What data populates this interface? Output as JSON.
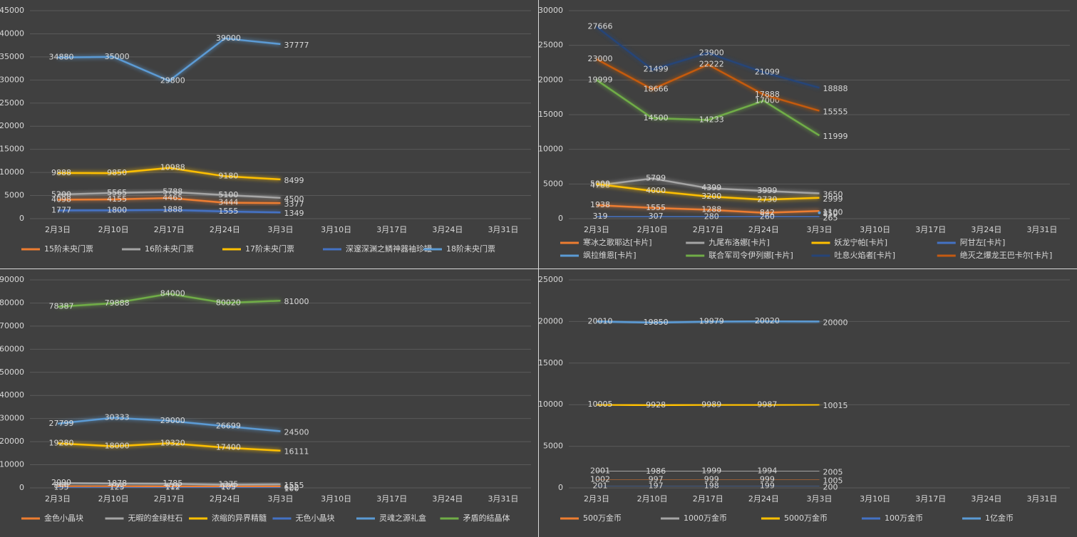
{
  "chart_data": [
    {
      "type": "line",
      "categories": [
        "2月3日",
        "2月10日",
        "2月17日",
        "2月24日",
        "3月3日",
        "3月10日",
        "3月17日",
        "3月24日",
        "3月31日"
      ],
      "ylim": [
        0,
        45000
      ],
      "yticks": [
        0,
        5000,
        10000,
        15000,
        20000,
        25000,
        30000,
        35000,
        40000,
        45000
      ],
      "grid": true,
      "legend": "bottom",
      "series": [
        {
          "name": "15阶未央门票",
          "color": "#ed7d31",
          "values": [
            4098,
            4155,
            4465,
            3444,
            3377,
            null,
            null,
            null,
            null
          ]
        },
        {
          "name": "16阶未央门票",
          "color": "#a5a5a5",
          "values": [
            5200,
            5565,
            5788,
            5100,
            4500,
            null,
            null,
            null,
            null
          ]
        },
        {
          "name": "17阶未央门票",
          "color": "#ffc000",
          "values": [
            9888,
            9850,
            10988,
            9180,
            8499,
            null,
            null,
            null,
            null
          ]
        },
        {
          "name": "深邃深渊之鳞神器袖珍罐",
          "color": "#4472c4",
          "values": [
            1777,
            1800,
            1888,
            1555,
            1349,
            null,
            null,
            null,
            null
          ]
        },
        {
          "name": "18阶未央门票",
          "color": "#5b9bd5",
          "values": [
            34880,
            35000,
            29800,
            39000,
            37777,
            null,
            null,
            null,
            null
          ]
        }
      ]
    },
    {
      "type": "line",
      "categories": [
        "2月3日",
        "2月10日",
        "2月17日",
        "2月24日",
        "3月3日",
        "3月10日",
        "3月17日",
        "3月24日",
        "3月31日"
      ],
      "ylim": [
        0,
        30000
      ],
      "yticks": [
        0,
        5000,
        10000,
        15000,
        20000,
        25000,
        30000
      ],
      "grid": true,
      "legend": "bottom",
      "series": [
        {
          "name": "寒冰之歌耶达[卡片]",
          "color": "#ed7d31",
          "values": [
            1938,
            1555,
            1288,
            842,
            1100,
            null,
            null,
            null,
            null
          ]
        },
        {
          "name": "九尾布洛娜[卡片]",
          "color": "#a5a5a5",
          "values": [
            4788,
            5799,
            4399,
            3999,
            3650,
            null,
            null,
            null,
            null
          ]
        },
        {
          "name": "妖龙宁帕[卡片]",
          "color": "#ffc000",
          "values": [
            5000,
            4000,
            3200,
            2730,
            2999,
            null,
            null,
            null,
            null
          ]
        },
        {
          "name": "阿甘左[卡片]",
          "color": "#4472c4",
          "values": [
            319,
            307,
            280,
            260,
            265,
            null,
            null,
            null,
            null
          ]
        },
        {
          "name": "飒拉维恩[卡片]",
          "color": "#5b9bd5",
          "values": [
            null,
            null,
            null,
            null,
            850,
            null,
            null,
            null,
            null
          ]
        },
        {
          "name": "联合军司令伊列娜[卡片]",
          "color": "#70ad47",
          "values": [
            19999,
            14500,
            14233,
            17000,
            11999,
            null,
            null,
            null,
            null
          ]
        },
        {
          "name": "吐息火焰者[卡片]",
          "color": "#264478",
          "values": [
            27666,
            21499,
            23900,
            21099,
            18888,
            null,
            null,
            null,
            null
          ]
        },
        {
          "name": "绝灭之爆龙王巴卡尔[卡片]",
          "color": "#c55a11",
          "values": [
            23000,
            18666,
            22222,
            17888,
            15555,
            null,
            null,
            null,
            null
          ]
        }
      ]
    },
    {
      "type": "line",
      "categories": [
        "2月3日",
        "2月10日",
        "2月17日",
        "2月24日",
        "3月3日",
        "3月10日",
        "3月17日",
        "3月24日",
        "3月31日"
      ],
      "ylim": [
        0,
        90000
      ],
      "yticks": [
        0,
        10000,
        20000,
        30000,
        40000,
        50000,
        60000,
        70000,
        80000,
        90000
      ],
      "grid": true,
      "legend": "bottom",
      "series": [
        {
          "name": "金色小晶块",
          "color": "#ed7d31",
          "values": [
            866,
            792,
            628,
            579,
            622,
            null,
            null,
            null,
            null
          ]
        },
        {
          "name": "无暇的金绿柱石",
          "color": "#a5a5a5",
          "values": [
            2090,
            1878,
            1785,
            1375,
            1555,
            null,
            null,
            null,
            null
          ]
        },
        {
          "name": "浓缩的异界精髓",
          "color": "#ffc000",
          "values": [
            19280,
            18000,
            19320,
            17400,
            16111,
            null,
            null,
            null,
            null
          ]
        },
        {
          "name": "无色小晶块",
          "color": "#4472c4",
          "values": [
            155,
            125,
            112,
            105,
            100,
            null,
            null,
            null,
            null
          ]
        },
        {
          "name": "灵魂之源礼盒",
          "color": "#5b9bd5",
          "values": [
            27799,
            30333,
            29000,
            26699,
            24500,
            null,
            null,
            null,
            null
          ]
        },
        {
          "name": "矛盾的结晶体",
          "color": "#70ad47",
          "values": [
            78387,
            79888,
            84000,
            80020,
            81000,
            null,
            null,
            null,
            null
          ]
        }
      ]
    },
    {
      "type": "line",
      "categories": [
        "2月3日",
        "2月10日",
        "2月17日",
        "2月24日",
        "3月3日",
        "3月10日",
        "3月17日",
        "3月24日",
        "3月31日"
      ],
      "ylim": [
        0,
        25000
      ],
      "yticks": [
        0,
        5000,
        10000,
        15000,
        20000,
        25000
      ],
      "grid": true,
      "legend": "bottom",
      "series": [
        {
          "name": "500万金币",
          "color": "#ed7d31",
          "values": [
            1002,
            997,
            999,
            999,
            1005,
            null,
            null,
            null,
            null
          ]
        },
        {
          "name": "1000万金币",
          "color": "#a5a5a5",
          "values": [
            2001,
            1986,
            1999,
            1994,
            2005,
            null,
            null,
            null,
            null
          ]
        },
        {
          "name": "5000万金币",
          "color": "#ffc000",
          "values": [
            10005,
            9928,
            9989,
            9987,
            10015,
            null,
            null,
            null,
            null
          ]
        },
        {
          "name": "100万金币",
          "color": "#4472c4",
          "values": [
            201,
            197,
            198,
            199,
            200,
            null,
            null,
            null,
            null
          ]
        },
        {
          "name": "1亿金币",
          "color": "#5b9bd5",
          "values": [
            20010,
            19850,
            19979,
            20020,
            20000,
            null,
            null,
            null,
            null
          ]
        }
      ]
    }
  ]
}
